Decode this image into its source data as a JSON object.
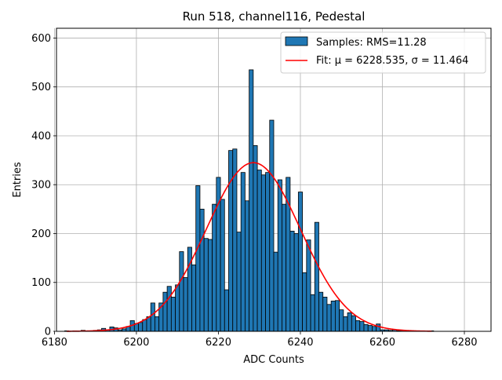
{
  "chart_data": {
    "type": "histogram",
    "title": "Run 518, channel116, Pedestal",
    "xlabel": "ADC Counts",
    "ylabel": "Entries",
    "xlim": [
      6180.5,
      6286.5
    ],
    "ylim": [
      0,
      620
    ],
    "xticks": [
      6180,
      6200,
      6220,
      6240,
      6260,
      6280
    ],
    "yticks": [
      0,
      100,
      200,
      300,
      400,
      500,
      600
    ],
    "grid": true,
    "legend_position": "top-right",
    "bin_width": 1,
    "series": [
      {
        "name": "Samples: RMS=11.28",
        "type": "bar",
        "color": "#1f77b4",
        "edgecolor": "#000000",
        "x": [
          6183,
          6184,
          6185,
          6186,
          6187,
          6188,
          6189,
          6190,
          6191,
          6192,
          6193,
          6194,
          6195,
          6196,
          6197,
          6198,
          6199,
          6200,
          6201,
          6202,
          6203,
          6204,
          6205,
          6206,
          6207,
          6208,
          6209,
          6210,
          6211,
          6212,
          6213,
          6214,
          6215,
          6216,
          6217,
          6218,
          6219,
          6220,
          6221,
          6222,
          6223,
          6224,
          6225,
          6226,
          6227,
          6228,
          6229,
          6230,
          6231,
          6232,
          6233,
          6234,
          6235,
          6236,
          6237,
          6238,
          6239,
          6240,
          6241,
          6242,
          6243,
          6244,
          6245,
          6246,
          6247,
          6248,
          6249,
          6250,
          6251,
          6252,
          6253,
          6254,
          6255,
          6256,
          6257,
          6258,
          6259,
          6260,
          6261,
          6262,
          6263,
          6264,
          6265,
          6266,
          6267,
          6268,
          6269,
          6270,
          6271,
          6272
        ],
        "values": [
          1,
          0,
          1,
          0,
          2,
          1,
          1,
          2,
          3,
          6,
          3,
          9,
          7,
          3,
          5,
          10,
          22,
          16,
          18,
          24,
          30,
          58,
          30,
          58,
          80,
          92,
          70,
          95,
          163,
          110,
          172,
          136,
          298,
          250,
          190,
          188,
          260,
          315,
          270,
          85,
          370,
          373,
          203,
          325,
          267,
          535,
          380,
          330,
          320,
          325,
          432,
          162,
          310,
          260,
          315,
          205,
          200,
          285,
          120,
          187,
          75,
          223,
          80,
          70,
          55,
          62,
          63,
          44,
          30,
          38,
          32,
          22,
          20,
          14,
          12,
          10,
          15,
          3,
          3,
          2,
          3,
          1,
          2,
          1,
          0,
          0,
          1,
          1,
          1,
          1
        ]
      },
      {
        "name": "Fit: μ = 6228.535, σ = 11.464",
        "type": "line",
        "color": "#ff0000",
        "model": "gaussian",
        "mu": 6228.535,
        "sigma": 11.464,
        "amplitude": 345,
        "x_range": [
          6183,
          6272
        ]
      }
    ]
  }
}
